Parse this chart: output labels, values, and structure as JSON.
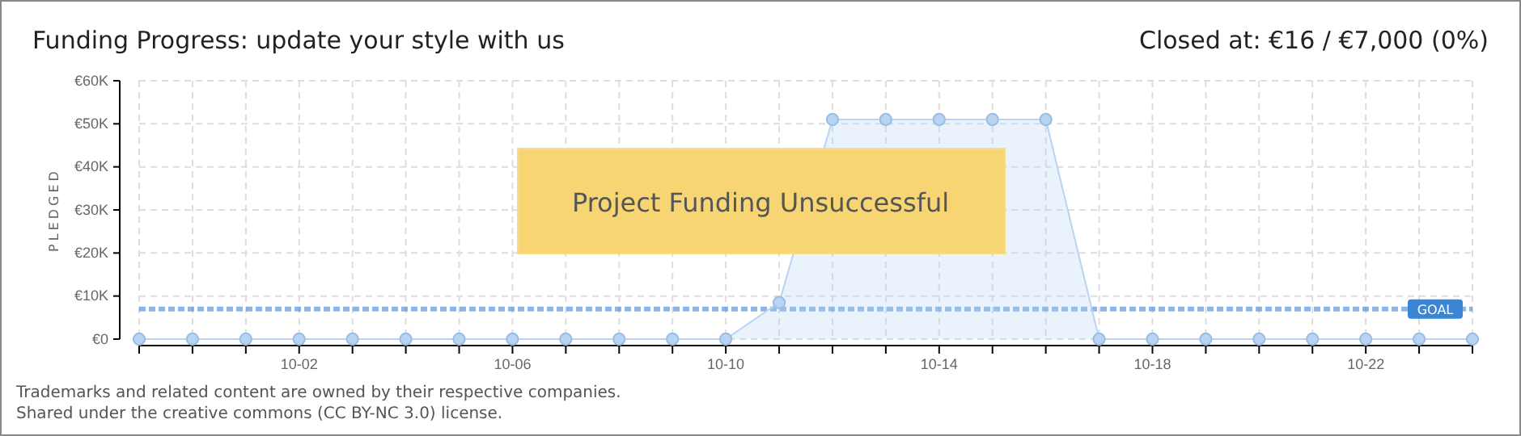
{
  "chart_data": {
    "type": "area",
    "title": "Funding Progress: update your style with us",
    "subtitle": "Closed at: €16 / €7,000 (0%)",
    "ylabel": "PLEDGED",
    "x": [
      "--09-29",
      "--09-30",
      "--10-01",
      "--10-02",
      "--10-03",
      "--10-04",
      "--10-05",
      "--10-06",
      "--10-07",
      "--10-08",
      "--10-09",
      "--10-10",
      "--10-11",
      "--10-12",
      "--10-13",
      "--10-14",
      "--10-15",
      "--10-16",
      "--10-17",
      "--10-18",
      "--10-19",
      "--10-20",
      "--10-21",
      "--10-22",
      "--10-23",
      "--10-24"
    ],
    "series": [
      {
        "color": "#b8d4f2",
        "values": [
          0,
          0,
          0,
          0,
          0,
          0,
          0,
          0,
          0,
          0,
          0,
          0,
          8500,
          51000,
          51000,
          51000,
          51000,
          51000,
          0,
          0,
          0,
          0,
          0,
          0,
          0,
          0
        ]
      }
    ],
    "xlim": [
      "--09-29",
      "--10-24"
    ],
    "xticks": [
      {
        "value": "--09-29",
        "label": null
      },
      {
        "value": "--09-30",
        "label": null
      },
      {
        "value": "--10-01",
        "label": null
      },
      {
        "value": "--10-02",
        "label": "10-02"
      },
      {
        "value": "--10-03",
        "label": null
      },
      {
        "value": "--10-04",
        "label": null
      },
      {
        "value": "--10-05",
        "label": null
      },
      {
        "value": "--10-06",
        "label": "10-06"
      },
      {
        "value": "--10-07",
        "label": null
      },
      {
        "value": "--10-08",
        "label": null
      },
      {
        "value": "--10-09",
        "label": null
      },
      {
        "value": "--10-10",
        "label": "10-10"
      },
      {
        "value": "--10-11",
        "label": null
      },
      {
        "value": "--10-12",
        "label": null
      },
      {
        "value": "--10-13",
        "label": null
      },
      {
        "value": "--10-14",
        "label": "10-14"
      },
      {
        "value": "--10-15",
        "label": null
      },
      {
        "value": "--10-16",
        "label": null
      },
      {
        "value": "--10-17",
        "label": null
      },
      {
        "value": "--10-18",
        "label": "10-18"
      },
      {
        "value": "--10-19",
        "label": null
      },
      {
        "value": "--10-20",
        "label": null
      },
      {
        "value": "--10-21",
        "label": null
      },
      {
        "value": "--10-22",
        "label": "10-22"
      },
      {
        "value": "--10-23",
        "label": null
      },
      {
        "value": "--10-24",
        "label": null
      }
    ],
    "ylim": [
      0,
      60000
    ],
    "yticks": [
      {
        "value": 0,
        "label": "€0"
      },
      {
        "value": 10000,
        "label": "€10K"
      },
      {
        "value": 20000,
        "label": "€20K"
      },
      {
        "value": 30000,
        "label": "€30K"
      },
      {
        "value": 40000,
        "label": "€40K"
      },
      {
        "value": 50000,
        "label": "€50K"
      },
      {
        "value": 60000,
        "label": "€60K"
      }
    ],
    "grid": true,
    "marker": "circle",
    "ref_lines": [
      {
        "axis": "y",
        "value": 7000,
        "label": "GOAL",
        "color": "#3b86d4",
        "line_style": "dashed"
      }
    ],
    "annotations": [
      "Project Funding Unsuccessful",
      "Trademarks and related content are owned by their respective companies.",
      "Shared under the creative commons (CC BY-NC 3.0) license."
    ]
  }
}
